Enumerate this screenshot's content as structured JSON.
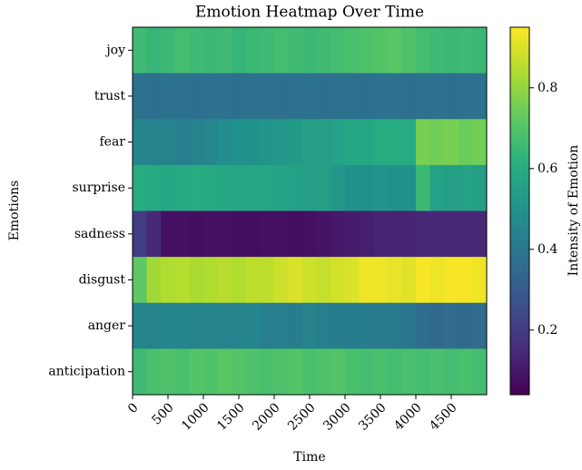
{
  "chart_data": {
    "type": "heatmap",
    "title": "Emotion Heatmap Over Time",
    "xlabel": "Time",
    "ylabel": "Emotions",
    "colorbar_label": "Intensity of Emotion",
    "colormap": "viridis",
    "x": [
      0,
      200,
      400,
      600,
      800,
      1000,
      1200,
      1400,
      1600,
      1800,
      2000,
      2200,
      2400,
      2600,
      2800,
      3000,
      3200,
      3400,
      3600,
      3800,
      4000,
      4200,
      4400,
      4600,
      4800
    ],
    "xlim": [
      0,
      5000
    ],
    "xticks": [
      0,
      500,
      1000,
      1500,
      2000,
      2500,
      3000,
      3500,
      4000,
      4500
    ],
    "clim": [
      0.04,
      0.95
    ],
    "cticks": [
      0.2,
      0.4,
      0.6,
      0.8
    ],
    "series": [
      {
        "name": "joy",
        "values": [
          0.66,
          0.64,
          0.65,
          0.67,
          0.66,
          0.65,
          0.66,
          0.64,
          0.65,
          0.66,
          0.67,
          0.66,
          0.65,
          0.66,
          0.67,
          0.68,
          0.69,
          0.7,
          0.71,
          0.69,
          0.67,
          0.66,
          0.65,
          0.66,
          0.65
        ]
      },
      {
        "name": "trust",
        "values": [
          0.38,
          0.37,
          0.38,
          0.38,
          0.37,
          0.38,
          0.38,
          0.37,
          0.38,
          0.38,
          0.37,
          0.38,
          0.38,
          0.37,
          0.38,
          0.38,
          0.37,
          0.38,
          0.38,
          0.37,
          0.38,
          0.38,
          0.37,
          0.38,
          0.38
        ]
      },
      {
        "name": "fear",
        "values": [
          0.45,
          0.44,
          0.44,
          0.43,
          0.44,
          0.46,
          0.48,
          0.5,
          0.5,
          0.51,
          0.52,
          0.53,
          0.55,
          0.55,
          0.56,
          0.58,
          0.58,
          0.6,
          0.6,
          0.6,
          0.76,
          0.75,
          0.76,
          0.74,
          0.75
        ]
      },
      {
        "name": "surprise",
        "values": [
          0.6,
          0.59,
          0.58,
          0.59,
          0.6,
          0.59,
          0.58,
          0.57,
          0.58,
          0.57,
          0.56,
          0.56,
          0.55,
          0.55,
          0.52,
          0.5,
          0.5,
          0.51,
          0.5,
          0.5,
          0.65,
          0.56,
          0.55,
          0.56,
          0.55
        ]
      },
      {
        "name": "sadness",
        "values": [
          0.2,
          0.14,
          0.08,
          0.08,
          0.07,
          0.08,
          0.08,
          0.07,
          0.07,
          0.08,
          0.08,
          0.07,
          0.08,
          0.09,
          0.1,
          0.11,
          0.12,
          0.13,
          0.13,
          0.13,
          0.14,
          0.14,
          0.14,
          0.14,
          0.14
        ]
      },
      {
        "name": "disgust",
        "values": [
          0.72,
          0.82,
          0.84,
          0.85,
          0.83,
          0.84,
          0.85,
          0.84,
          0.86,
          0.86,
          0.88,
          0.9,
          0.88,
          0.87,
          0.89,
          0.9,
          0.93,
          0.93,
          0.92,
          0.91,
          0.94,
          0.93,
          0.94,
          0.94,
          0.93
        ]
      },
      {
        "name": "anger",
        "values": [
          0.45,
          0.44,
          0.45,
          0.45,
          0.44,
          0.45,
          0.44,
          0.44,
          0.45,
          0.43,
          0.43,
          0.42,
          0.44,
          0.43,
          0.42,
          0.42,
          0.42,
          0.41,
          0.41,
          0.4,
          0.36,
          0.35,
          0.36,
          0.35,
          0.36
        ]
      },
      {
        "name": "anticipation",
        "values": [
          0.66,
          0.68,
          0.69,
          0.68,
          0.7,
          0.69,
          0.71,
          0.7,
          0.69,
          0.68,
          0.69,
          0.7,
          0.68,
          0.69,
          0.7,
          0.68,
          0.67,
          0.68,
          0.67,
          0.68,
          0.67,
          0.68,
          0.67,
          0.68,
          0.67
        ]
      }
    ]
  }
}
